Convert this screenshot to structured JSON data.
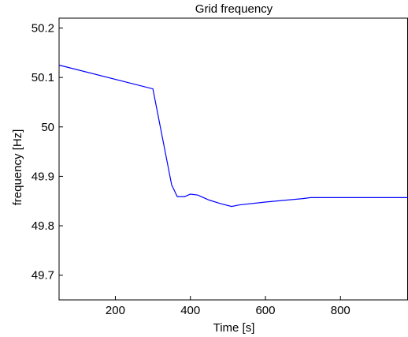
{
  "chart_data": {
    "type": "line",
    "title": "Grid frequency",
    "xlabel": "Time [s]",
    "ylabel": "frequency [Hz]",
    "xlim": [
      50,
      980
    ],
    "ylim": [
      49.65,
      50.22
    ],
    "xticks": [
      200,
      400,
      600,
      800
    ],
    "yticks": [
      49.7,
      49.8,
      49.9,
      50,
      50.1,
      50.2
    ],
    "xtick_labels": [
      "200",
      "400",
      "600",
      "800"
    ],
    "ytick_labels": [
      "49.7",
      "49.8",
      "49.9",
      "50",
      "50.1",
      "50.2"
    ],
    "grid": false,
    "series": [
      {
        "color": "#0000ff",
        "x": [
          50,
          300,
          350,
          365,
          385,
          400,
          420,
          450,
          480,
          510,
          530,
          600,
          700,
          720,
          800,
          860,
          900,
          980
        ],
        "y": [
          50.125,
          50.077,
          49.883,
          49.859,
          49.859,
          49.864,
          49.862,
          49.852,
          49.845,
          49.839,
          49.842,
          49.848,
          49.855,
          49.857,
          49.857,
          49.857,
          49.857,
          49.857
        ]
      }
    ]
  }
}
